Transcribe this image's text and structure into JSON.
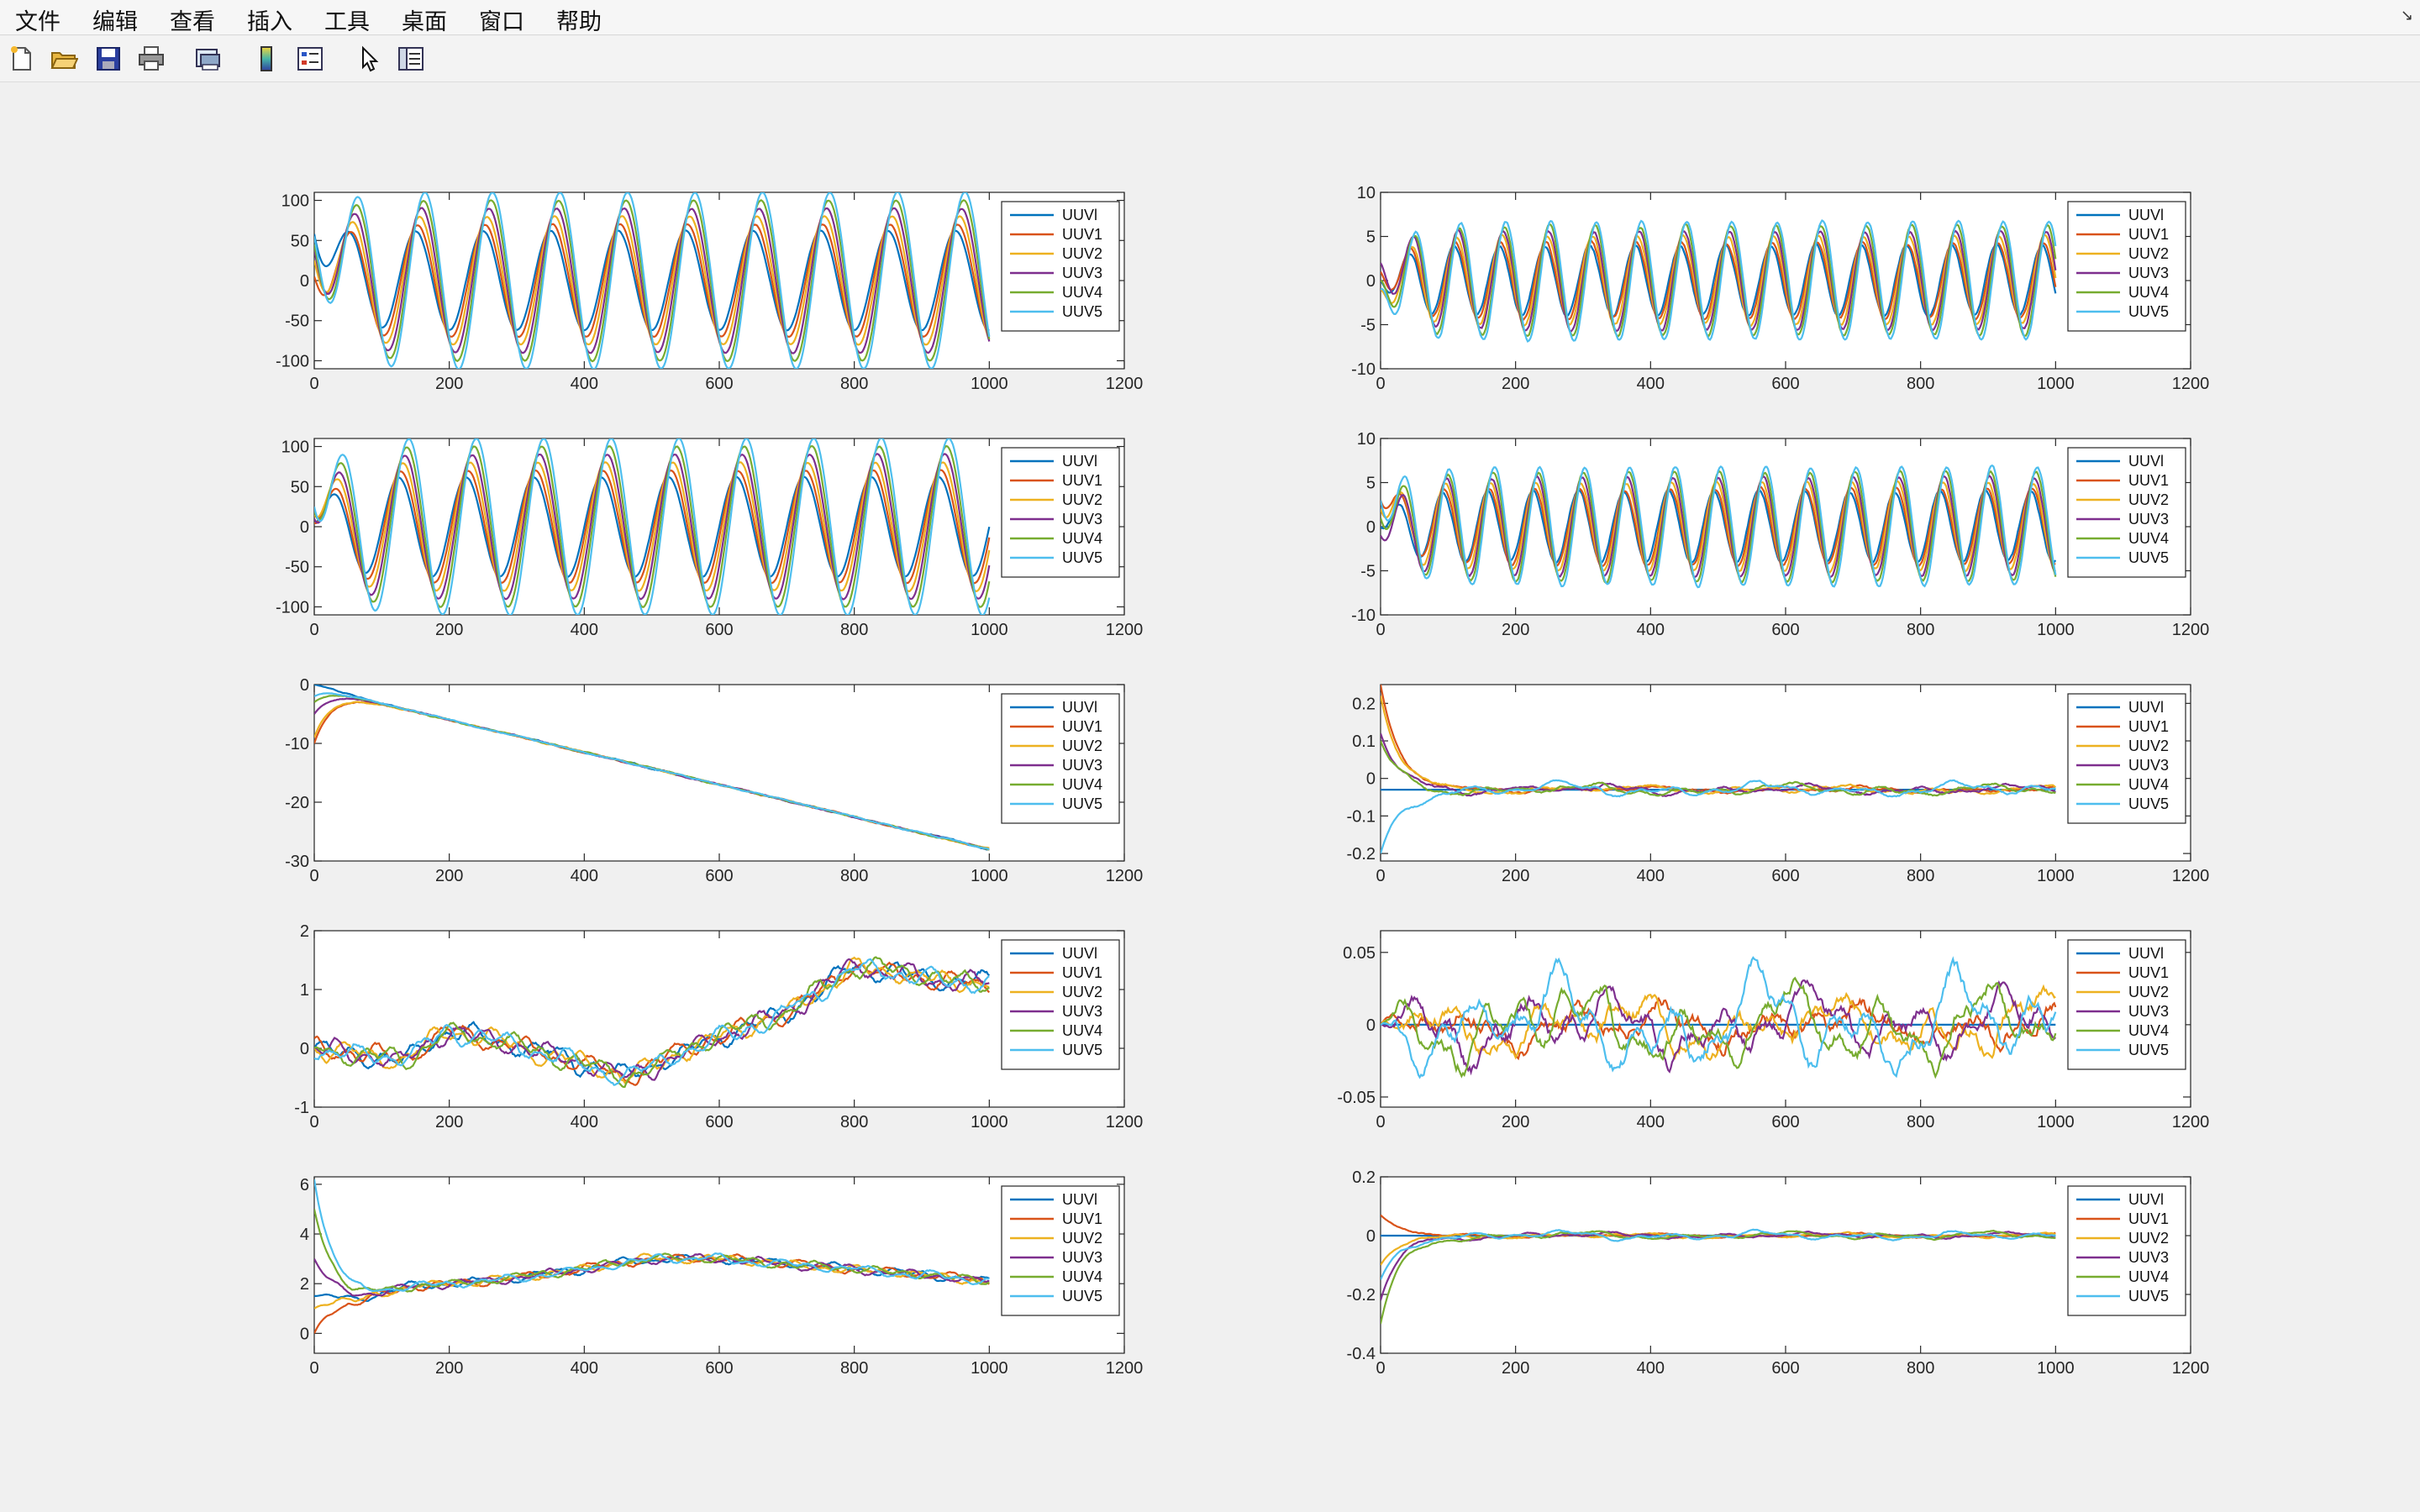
{
  "menu": [
    "文件",
    "编辑",
    "查看",
    "插入",
    "工具",
    "桌面",
    "窗口",
    "帮助"
  ],
  "toolbar": [
    {
      "icon": "new-figure-icon"
    },
    {
      "icon": "open-file-icon"
    },
    {
      "icon": "save-icon"
    },
    {
      "icon": "print-icon"
    },
    {
      "icon": "print-preview-icon"
    },
    {
      "icon": "colorbar-icon"
    },
    {
      "icon": "legend-icon"
    },
    {
      "icon": "pointer-icon"
    },
    {
      "icon": "property-editor-icon"
    }
  ],
  "colors": [
    "#0072BD",
    "#D95319",
    "#EDB120",
    "#7E2F8E",
    "#77AC30",
    "#4DBEEE"
  ],
  "chart_data": [
    {
      "type": "line",
      "title": "",
      "xlabel": "",
      "ylabel": "",
      "xlim": [
        0,
        1200
      ],
      "ylim": [
        -110,
        110
      ],
      "xticks": [
        0,
        200,
        400,
        600,
        800,
        1000,
        1200
      ],
      "yticks": [
        -100,
        -50,
        0,
        50,
        100
      ],
      "legend_position": "top-right",
      "legend": [
        "UUVl",
        "UUV1",
        "UUV2",
        "UUV3",
        "UUV4",
        "UUV5"
      ],
      "series": [
        {
          "name": "UUVl",
          "signal": {
            "kind": "sine",
            "amps": [
              62,
              70,
              80,
              90,
              100,
              110
            ],
            "period": 100,
            "phase": [
              0,
              3,
              6,
              9,
              12,
              14
            ],
            "offset": 0,
            "noise": 1,
            "init": [
              58,
              5,
              25,
              38,
              45,
              55
            ]
          }
        }
      ]
    },
    {
      "type": "line",
      "title": "",
      "xlabel": "",
      "ylabel": "",
      "xlim": [
        0,
        1200
      ],
      "ylim": [
        -10,
        10
      ],
      "xticks": [
        0,
        200,
        400,
        600,
        800,
        1000,
        1200
      ],
      "yticks": [
        -10,
        -5,
        0,
        5,
        10
      ],
      "legend_position": "top-right",
      "legend": [
        "UUVl",
        "UUV1",
        "UUV2",
        "UUV3",
        "UUV4",
        "UUV5"
      ],
      "series": [
        {
          "name": "UUVl",
          "signal": {
            "kind": "sine",
            "amps": [
              4,
              4.3,
              5,
              5.6,
              6.2,
              6.7
            ],
            "period": 67,
            "phase": [
              0,
              2,
              4,
              6,
              8,
              10
            ],
            "offset": 0,
            "noise": 0.3,
            "init": [
              0,
              1,
              -1,
              2,
              0,
              -1
            ]
          }
        }
      ]
    },
    {
      "type": "line",
      "title": "",
      "xlabel": "",
      "ylabel": "",
      "xlim": [
        0,
        1200
      ],
      "ylim": [
        -110,
        110
      ],
      "xticks": [
        0,
        200,
        400,
        600,
        800,
        1000,
        1200
      ],
      "yticks": [
        -100,
        -50,
        0,
        50,
        100
      ],
      "legend_position": "top-right",
      "legend": [
        "UUVl",
        "UUV1",
        "UUV2",
        "UUV3",
        "UUV4",
        "UUV5"
      ],
      "series": [
        {
          "name": "UUVl",
          "signal": {
            "kind": "sine",
            "amps": [
              62,
              70,
              80,
              90,
              100,
              110
            ],
            "period": 100,
            "phase": [
              -25,
              -22,
              -19,
              -16,
              -13,
              -10
            ],
            "offset": 0,
            "noise": 1,
            "init": [
              5,
              5,
              15,
              10,
              20,
              25
            ]
          }
        }
      ]
    },
    {
      "type": "line",
      "title": "",
      "xlabel": "",
      "ylabel": "",
      "xlim": [
        0,
        1200
      ],
      "ylim": [
        -10,
        10
      ],
      "xticks": [
        0,
        200,
        400,
        600,
        800,
        1000,
        1200
      ],
      "yticks": [
        -10,
        -5,
        0,
        5,
        10
      ],
      "legend_position": "top-right",
      "legend": [
        "UUVl",
        "UUV1",
        "UUV2",
        "UUV3",
        "UUV4",
        "UUV5"
      ],
      "series": [
        {
          "name": "UUVl",
          "signal": {
            "kind": "sine",
            "amps": [
              4,
              4.3,
              5,
              5.6,
              6.2,
              6.7
            ],
            "period": 67,
            "phase": [
              -17,
              -15,
              -13,
              -11,
              -9,
              -7
            ],
            "offset": 0,
            "noise": 0.3,
            "init": [
              0,
              3,
              2,
              -1,
              1,
              3
            ]
          }
        }
      ]
    },
    {
      "type": "line",
      "title": "",
      "xlabel": "",
      "ylabel": "",
      "xlim": [
        0,
        1200
      ],
      "ylim": [
        -30,
        0
      ],
      "xticks": [
        0,
        200,
        400,
        600,
        800,
        1000,
        1200
      ],
      "yticks": [
        -30,
        -20,
        -10,
        0
      ],
      "legend_position": "top-right",
      "legend": [
        "UUVl",
        "UUV1",
        "UUV2",
        "UUV3",
        "UUV4",
        "UUV5"
      ],
      "series": [
        {
          "name": "UUVl",
          "signal": {
            "kind": "ramp",
            "start": -0.5,
            "slope": -0.0275,
            "init": [
              0,
              -10,
              -9,
              -5,
              -3,
              -2
            ],
            "noise": 0.15
          }
        }
      ]
    },
    {
      "type": "line",
      "title": "",
      "xlabel": "",
      "ylabel": "",
      "xlim": [
        0,
        1200
      ],
      "ylim": [
        -0.22,
        0.25
      ],
      "xticks": [
        0,
        200,
        400,
        600,
        800,
        1000,
        1200
      ],
      "yticks": [
        -0.2,
        -0.1,
        0,
        0.1,
        0.2
      ],
      "legend_position": "top-right",
      "legend": [
        "UUVl",
        "UUV1",
        "UUV2",
        "UUV3",
        "UUV4",
        "UUV5"
      ],
      "series": [
        {
          "name": "UUVl",
          "signal": {
            "kind": "noise",
            "level": -0.03,
            "amp": 0.012,
            "init": [
              -0.03,
              0.25,
              0.22,
              0.12,
              0.1,
              -0.2
            ],
            "flat_first": true
          }
        }
      ]
    },
    {
      "type": "line",
      "title": "",
      "xlabel": "",
      "ylabel": "",
      "xlim": [
        0,
        1200
      ],
      "ylim": [
        -1,
        2
      ],
      "xticks": [
        0,
        200,
        400,
        600,
        800,
        1000,
        1200
      ],
      "yticks": [
        -1,
        0,
        1,
        2
      ],
      "legend_position": "top-right",
      "legend": [
        "UUVl",
        "UUV1",
        "UUV2",
        "UUV3",
        "UUV4",
        "UUV5"
      ],
      "series": [
        {
          "name": "UUVl",
          "signal": {
            "kind": "drift",
            "points": [
              [
                0,
                0
              ],
              [
                130,
                -0.2
              ],
              [
                200,
                0.3
              ],
              [
                280,
                0.1
              ],
              [
                380,
                -0.2
              ],
              [
                460,
                -0.5
              ],
              [
                600,
                0.2
              ],
              [
                700,
                0.6
              ],
              [
                800,
                1.4
              ],
              [
                900,
                1.2
              ],
              [
                1000,
                1.1
              ]
            ],
            "amp": 0.12
          }
        }
      ]
    },
    {
      "type": "line",
      "title": "",
      "xlabel": "",
      "ylabel": "",
      "xlim": [
        0,
        1200
      ],
      "ylim": [
        -0.057,
        0.065
      ],
      "xticks": [
        0,
        200,
        400,
        600,
        800,
        1000,
        1200
      ],
      "yticks": [
        -0.05,
        0,
        0.05
      ],
      "legend_position": "top-right",
      "legend": [
        "UUVl",
        "UUV1",
        "UUV2",
        "UUV3",
        "UUV4",
        "UUV5"
      ],
      "series": [
        {
          "name": "UUVl",
          "signal": {
            "kind": "noise",
            "level": 0,
            "amp": 0.022,
            "init": [
              0,
              0,
              0,
              0,
              0,
              0
            ],
            "flat_first": true
          }
        }
      ]
    },
    {
      "type": "line",
      "title": "",
      "xlabel": "",
      "ylabel": "",
      "xlim": [
        0,
        1200
      ],
      "ylim": [
        -0.8,
        6.3
      ],
      "xticks": [
        0,
        200,
        400,
        600,
        800,
        1000,
        1200
      ],
      "yticks": [
        0,
        2,
        4,
        6
      ],
      "legend_position": "top-right",
      "legend": [
        "UUVl",
        "UUV1",
        "UUV2",
        "UUV3",
        "UUV4",
        "UUV5"
      ],
      "series": [
        {
          "name": "UUVl",
          "signal": {
            "kind": "drift",
            "points": [
              [
                0,
                1.5
              ],
              [
                60,
                1.4
              ],
              [
                150,
                1.9
              ],
              [
                250,
                2.1
              ],
              [
                350,
                2.4
              ],
              [
                500,
                3.0
              ],
              [
                600,
                3.0
              ],
              [
                800,
                2.6
              ],
              [
                1000,
                2.1
              ]
            ],
            "amp": 0.12,
            "init": [
              1.5,
              0,
              1,
              3,
              5,
              6.2
            ]
          }
        }
      ]
    },
    {
      "type": "line",
      "title": "",
      "xlabel": "",
      "ylabel": "",
      "xlim": [
        0,
        1200
      ],
      "ylim": [
        -0.4,
        0.2
      ],
      "xticks": [
        0,
        200,
        400,
        600,
        800,
        1000,
        1200
      ],
      "yticks": [
        -0.4,
        -0.2,
        0,
        0.2
      ],
      "legend_position": "top-right",
      "legend": [
        "UUVl",
        "UUV1",
        "UUV2",
        "UUV3",
        "UUV4",
        "UUV5"
      ],
      "series": [
        {
          "name": "UUVl",
          "signal": {
            "kind": "noise",
            "level": 0,
            "amp": 0.01,
            "init": [
              0,
              0.07,
              -0.1,
              -0.22,
              -0.3,
              -0.15
            ],
            "flat_first": true
          }
        }
      ]
    }
  ]
}
